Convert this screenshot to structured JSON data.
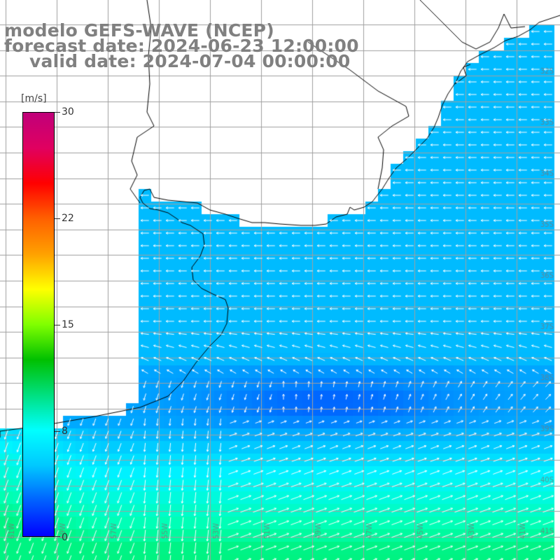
{
  "header": {
    "title_model": "modelo GEFS-WAVE (NCEP)",
    "title_forecast": "forecast date: 2024-06-23 12:00:00",
    "title_valid": "valid date: 2024-07-04 00:00:00"
  },
  "legend": {
    "units": "[m/s]",
    "ticks": [
      "30",
      "22",
      "15",
      "8",
      "0"
    ],
    "tick_values": [
      30,
      22,
      15,
      8,
      0
    ],
    "range": [
      0,
      30
    ],
    "colors": [
      "#0000ff",
      "#0060ff",
      "#00c8ff",
      "#00ffff",
      "#00e080",
      "#00c000",
      "#80ff00",
      "#ffff00",
      "#ffa000",
      "#ff6000",
      "#ff0000",
      "#e00060",
      "#c0007a"
    ]
  },
  "map": {
    "land_color": "#ffffff",
    "grid_color": "#a0a0a0",
    "coast_color": "#000000",
    "arrow_color": "#ffffff",
    "longitude_labels": [
      "61W",
      "59W",
      "57W",
      "55W",
      "53W",
      "51W",
      "49W",
      "47W",
      "45W",
      "43W",
      "41W"
    ],
    "latitude_labels": [
      "32S",
      "33S",
      "34S",
      "35S",
      "36S",
      "37S",
      "38S",
      "39S",
      "40S",
      "41S"
    ]
  }
}
